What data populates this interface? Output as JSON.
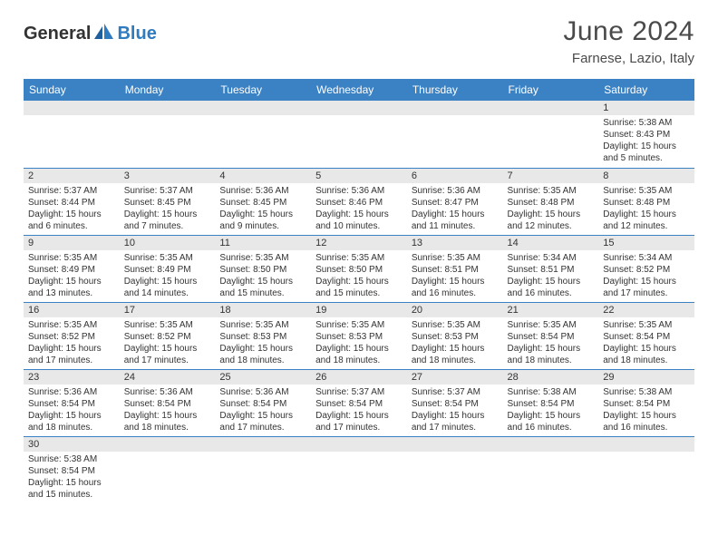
{
  "logo": {
    "part1": "General",
    "part2": "Blue"
  },
  "title": "June 2024",
  "location": "Farnese, Lazio, Italy",
  "colors": {
    "header_bg": "#3b82c4",
    "header_fg": "#ffffff",
    "daynum_bg": "#e8e8e8",
    "border": "#3b82c4",
    "logo_blue": "#2f7bbf"
  },
  "weekdays": [
    "Sunday",
    "Monday",
    "Tuesday",
    "Wednesday",
    "Thursday",
    "Friday",
    "Saturday"
  ],
  "weeks": [
    [
      null,
      null,
      null,
      null,
      null,
      null,
      {
        "n": 1,
        "sr": "5:38 AM",
        "ss": "8:43 PM",
        "dl": "15 hours and 5 minutes."
      }
    ],
    [
      {
        "n": 2,
        "sr": "5:37 AM",
        "ss": "8:44 PM",
        "dl": "15 hours and 6 minutes."
      },
      {
        "n": 3,
        "sr": "5:37 AM",
        "ss": "8:45 PM",
        "dl": "15 hours and 7 minutes."
      },
      {
        "n": 4,
        "sr": "5:36 AM",
        "ss": "8:45 PM",
        "dl": "15 hours and 9 minutes."
      },
      {
        "n": 5,
        "sr": "5:36 AM",
        "ss": "8:46 PM",
        "dl": "15 hours and 10 minutes."
      },
      {
        "n": 6,
        "sr": "5:36 AM",
        "ss": "8:47 PM",
        "dl": "15 hours and 11 minutes."
      },
      {
        "n": 7,
        "sr": "5:35 AM",
        "ss": "8:48 PM",
        "dl": "15 hours and 12 minutes."
      },
      {
        "n": 8,
        "sr": "5:35 AM",
        "ss": "8:48 PM",
        "dl": "15 hours and 12 minutes."
      }
    ],
    [
      {
        "n": 9,
        "sr": "5:35 AM",
        "ss": "8:49 PM",
        "dl": "15 hours and 13 minutes."
      },
      {
        "n": 10,
        "sr": "5:35 AM",
        "ss": "8:49 PM",
        "dl": "15 hours and 14 minutes."
      },
      {
        "n": 11,
        "sr": "5:35 AM",
        "ss": "8:50 PM",
        "dl": "15 hours and 15 minutes."
      },
      {
        "n": 12,
        "sr": "5:35 AM",
        "ss": "8:50 PM",
        "dl": "15 hours and 15 minutes."
      },
      {
        "n": 13,
        "sr": "5:35 AM",
        "ss": "8:51 PM",
        "dl": "15 hours and 16 minutes."
      },
      {
        "n": 14,
        "sr": "5:34 AM",
        "ss": "8:51 PM",
        "dl": "15 hours and 16 minutes."
      },
      {
        "n": 15,
        "sr": "5:34 AM",
        "ss": "8:52 PM",
        "dl": "15 hours and 17 minutes."
      }
    ],
    [
      {
        "n": 16,
        "sr": "5:35 AM",
        "ss": "8:52 PM",
        "dl": "15 hours and 17 minutes."
      },
      {
        "n": 17,
        "sr": "5:35 AM",
        "ss": "8:52 PM",
        "dl": "15 hours and 17 minutes."
      },
      {
        "n": 18,
        "sr": "5:35 AM",
        "ss": "8:53 PM",
        "dl": "15 hours and 18 minutes."
      },
      {
        "n": 19,
        "sr": "5:35 AM",
        "ss": "8:53 PM",
        "dl": "15 hours and 18 minutes."
      },
      {
        "n": 20,
        "sr": "5:35 AM",
        "ss": "8:53 PM",
        "dl": "15 hours and 18 minutes."
      },
      {
        "n": 21,
        "sr": "5:35 AM",
        "ss": "8:54 PM",
        "dl": "15 hours and 18 minutes."
      },
      {
        "n": 22,
        "sr": "5:35 AM",
        "ss": "8:54 PM",
        "dl": "15 hours and 18 minutes."
      }
    ],
    [
      {
        "n": 23,
        "sr": "5:36 AM",
        "ss": "8:54 PM",
        "dl": "15 hours and 18 minutes."
      },
      {
        "n": 24,
        "sr": "5:36 AM",
        "ss": "8:54 PM",
        "dl": "15 hours and 18 minutes."
      },
      {
        "n": 25,
        "sr": "5:36 AM",
        "ss": "8:54 PM",
        "dl": "15 hours and 17 minutes."
      },
      {
        "n": 26,
        "sr": "5:37 AM",
        "ss": "8:54 PM",
        "dl": "15 hours and 17 minutes."
      },
      {
        "n": 27,
        "sr": "5:37 AM",
        "ss": "8:54 PM",
        "dl": "15 hours and 17 minutes."
      },
      {
        "n": 28,
        "sr": "5:38 AM",
        "ss": "8:54 PM",
        "dl": "15 hours and 16 minutes."
      },
      {
        "n": 29,
        "sr": "5:38 AM",
        "ss": "8:54 PM",
        "dl": "15 hours and 16 minutes."
      }
    ],
    [
      {
        "n": 30,
        "sr": "5:38 AM",
        "ss": "8:54 PM",
        "dl": "15 hours and 15 minutes."
      },
      null,
      null,
      null,
      null,
      null,
      null
    ]
  ],
  "labels": {
    "sunrise": "Sunrise:",
    "sunset": "Sunset:",
    "daylight": "Daylight:"
  }
}
